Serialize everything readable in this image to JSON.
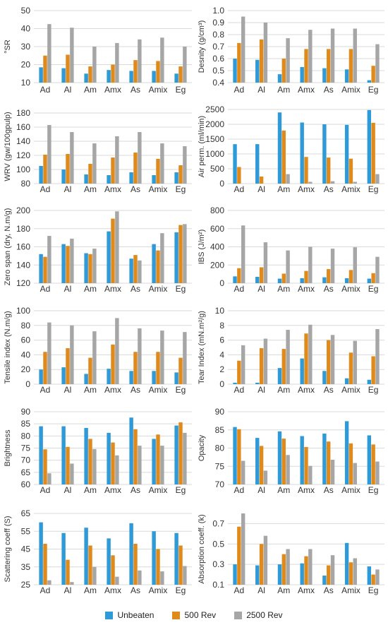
{
  "colors": {
    "unbeaten": "#2e9ad8",
    "rev500": "#e08a1a",
    "rev2500": "#a6a6a6",
    "grid": "#d9d9d9",
    "text": "#333333"
  },
  "legend": [
    "Unbeaten",
    "500 Rev",
    "2500 Rev"
  ],
  "chart_data": [
    {
      "type": "bar",
      "ylabel": "°SR",
      "categories": [
        "Ad",
        "Al",
        "Am",
        "Amx",
        "As",
        "Amix",
        "Eg"
      ],
      "yticks": [
        "10",
        "20",
        "30",
        "40",
        "50"
      ],
      "ylim": [
        10,
        50
      ],
      "series": [
        {
          "name": "Unbeaten",
          "values": [
            18.5,
            18,
            15,
            17,
            16.5,
            16.5,
            15
          ]
        },
        {
          "name": "500 Rev",
          "values": [
            25,
            25.5,
            19,
            20,
            22.5,
            22,
            19
          ]
        },
        {
          "name": "2500 Rev",
          "values": [
            42.5,
            40.5,
            30,
            32,
            34,
            35,
            30
          ]
        }
      ]
    },
    {
      "type": "bar",
      "ylabel": "Desnity (g/cm³)",
      "categories": [
        "Ad",
        "Al",
        "Am",
        "Amx",
        "As",
        "Amix",
        "Eg"
      ],
      "yticks": [
        "0.4",
        "0.5",
        "0.6",
        "0.7",
        "0.8",
        "0.9",
        "1.0"
      ],
      "ylim": [
        0.4,
        1.0
      ],
      "series": [
        {
          "name": "Unbeaten",
          "values": [
            0.6,
            0.59,
            0.47,
            0.53,
            0.52,
            0.51,
            0.42
          ]
        },
        {
          "name": "500 Rev",
          "values": [
            0.73,
            0.76,
            0.6,
            0.68,
            0.68,
            0.68,
            0.54
          ]
        },
        {
          "name": "2500 Rev",
          "values": [
            0.95,
            0.9,
            0.77,
            0.84,
            0.85,
            0.85,
            0.72
          ]
        }
      ]
    },
    {
      "type": "bar",
      "ylabel": "WRV (gw/100gpulp)",
      "categories": [
        "Ad",
        "Al",
        "Am",
        "Amx",
        "As",
        "Amix",
        "Eg"
      ],
      "yticks": [
        "80",
        "100",
        "120",
        "140",
        "160",
        "180"
      ],
      "ylim": [
        80,
        185
      ],
      "series": [
        {
          "name": "Unbeaten",
          "values": [
            105,
            100,
            93,
            92,
            96,
            92,
            96
          ]
        },
        {
          "name": "500 Rev",
          "values": [
            121,
            122,
            108,
            117,
            124,
            115,
            106
          ]
        },
        {
          "name": "2500 Rev",
          "values": [
            163,
            153,
            137,
            147,
            153,
            137,
            133
          ]
        }
      ]
    },
    {
      "type": "bar",
      "ylabel": "Air perm. (ml/min)",
      "categories": [
        "Ad",
        "Al",
        "Am",
        "Amx",
        "As",
        "Amix",
        "Eg"
      ],
      "yticks": [
        "0",
        "500",
        "1000",
        "1500",
        "2000",
        "2500"
      ],
      "ylim": [
        0,
        2500
      ],
      "series": [
        {
          "name": "Unbeaten",
          "values": [
            1330,
            1330,
            2400,
            2060,
            2000,
            1980,
            2480
          ]
        },
        {
          "name": "500 Rev",
          "values": [
            560,
            240,
            1790,
            900,
            880,
            840,
            2050
          ]
        },
        {
          "name": "2500 Rev",
          "values": [
            0,
            0,
            320,
            60,
            80,
            60,
            320
          ]
        }
      ]
    },
    {
      "type": "bar",
      "ylabel": "Zero span (dry, N.m/g)",
      "categories": [
        "Ad",
        "Al",
        "Am",
        "Amx",
        "As",
        "Amix",
        "Eg"
      ],
      "yticks": [
        "120",
        "140",
        "160",
        "180",
        "200"
      ],
      "ylim": [
        120,
        200
      ],
      "series": [
        {
          "name": "Unbeaten",
          "values": [
            152,
            163,
            153,
            177,
            147,
            163,
            176
          ]
        },
        {
          "name": "500 Rev",
          "values": [
            149,
            161,
            152,
            191,
            151,
            156,
            184
          ]
        },
        {
          "name": "2500 Rev",
          "values": [
            172,
            169,
            158,
            199,
            145,
            175,
            185
          ]
        }
      ]
    },
    {
      "type": "bar",
      "ylabel": "IBS (J/m²)",
      "categories": [
        "Ad",
        "Al",
        "Am",
        "Amx",
        "As",
        "Amix",
        "Eg"
      ],
      "yticks": [
        "0",
        "200",
        "400",
        "600",
        "800"
      ],
      "ylim": [
        0,
        800
      ],
      "series": [
        {
          "name": "Unbeaten",
          "values": [
            75,
            70,
            50,
            55,
            65,
            55,
            50
          ]
        },
        {
          "name": "500 Rev",
          "values": [
            165,
            175,
            105,
            135,
            155,
            145,
            110
          ]
        },
        {
          "name": "2500 Rev",
          "values": [
            635,
            450,
            360,
            400,
            380,
            395,
            290
          ]
        }
      ]
    },
    {
      "type": "bar",
      "ylabel": "Tensile index (N.m/g)",
      "categories": [
        "Ad",
        "Al",
        "Am",
        "Amx",
        "As",
        "Amix",
        "Eg"
      ],
      "yticks": [
        "0",
        "20",
        "40",
        "60",
        "80",
        "100"
      ],
      "ylim": [
        0,
        100
      ],
      "series": [
        {
          "name": "Unbeaten",
          "values": [
            20,
            23,
            14,
            21,
            18,
            18,
            16
          ]
        },
        {
          "name": "500 Rev",
          "values": [
            44,
            49,
            36,
            54,
            44,
            44,
            36
          ]
        },
        {
          "name": "2500 Rev",
          "values": [
            84,
            80,
            72,
            90,
            76,
            73,
            71
          ]
        }
      ]
    },
    {
      "type": "bar",
      "ylabel": "Tear Index (mN.m²/g)",
      "categories": [
        "Ad",
        "Al",
        "Am",
        "Amx",
        "As",
        "Amix",
        "Eg"
      ],
      "yticks": [
        "0",
        "2",
        "4",
        "6",
        "8",
        "10"
      ],
      "ylim": [
        0,
        10
      ],
      "series": [
        {
          "name": "Unbeaten",
          "values": [
            0.2,
            0.2,
            2.2,
            3.5,
            1.8,
            0.8,
            0.6
          ]
        },
        {
          "name": "500 Rev",
          "values": [
            3.2,
            4.9,
            4.8,
            6.9,
            6.0,
            4.3,
            3.8
          ]
        },
        {
          "name": "2500 Rev",
          "values": [
            5.3,
            6.2,
            7.4,
            8.1,
            6.7,
            5.9,
            7.5
          ]
        }
      ]
    },
    {
      "type": "bar",
      "ylabel": "Brightness",
      "categories": [
        "Ad",
        "Al",
        "Am",
        "Amx",
        "As",
        "Amix",
        "Eg"
      ],
      "yticks": [
        "60",
        "65",
        "70",
        "75",
        "80",
        "85",
        "90"
      ],
      "ylim": [
        60,
        90
      ],
      "series": [
        {
          "name": "Unbeaten",
          "values": [
            84,
            84,
            83.3,
            81.3,
            87.6,
            78.8,
            84.3
          ]
        },
        {
          "name": "500 Rev",
          "values": [
            74.5,
            75.5,
            78.8,
            77.3,
            82.8,
            80.6,
            85.6
          ]
        },
        {
          "name": "2500 Rev",
          "values": [
            64.6,
            68.6,
            74.6,
            72,
            76,
            76,
            81.3
          ]
        }
      ]
    },
    {
      "type": "bar",
      "ylabel": "Opacity",
      "categories": [
        "Ad",
        "Al",
        "Am",
        "Amx",
        "As",
        "Amix",
        "Eg"
      ],
      "yticks": [
        "70",
        "75",
        "80",
        "85",
        "90"
      ],
      "ylim": [
        70,
        90
      ],
      "series": [
        {
          "name": "Unbeaten",
          "values": [
            85.8,
            82.8,
            84.6,
            83.3,
            84,
            87.4,
            83.5
          ]
        },
        {
          "name": "500 Rev",
          "values": [
            85.2,
            80.6,
            82.6,
            80.3,
            81.8,
            81.3,
            81
          ]
        },
        {
          "name": "2500 Rev",
          "values": [
            76.5,
            73.8,
            78.1,
            75.1,
            76.8,
            75.9,
            76.3
          ]
        }
      ]
    },
    {
      "type": "bar",
      "ylabel": "Scattering coeff (S)",
      "categories": [
        "Ad",
        "Al",
        "Am",
        "Amx",
        "As",
        "Amix",
        "Eg"
      ],
      "yticks": [
        "25",
        "35",
        "45",
        "55",
        "65"
      ],
      "ylim": [
        25,
        65
      ],
      "series": [
        {
          "name": "Unbeaten",
          "values": [
            60,
            54,
            57,
            51,
            59.5,
            55,
            54
          ]
        },
        {
          "name": "500 Rev",
          "values": [
            48,
            39,
            47,
            41.5,
            48,
            45,
            47
          ]
        },
        {
          "name": "2500 Rev",
          "values": [
            27.5,
            26.5,
            35,
            29.5,
            33,
            32.5,
            35.5
          ]
        }
      ]
    },
    {
      "type": "bar",
      "ylabel": "Absorption coeff. (k)",
      "categories": [
        "Ad",
        "Al",
        "Am",
        "Amx",
        "As",
        "Amix",
        "Eg"
      ],
      "yticks": [
        "0.1",
        "0.3",
        "0.5",
        "0.7"
      ],
      "ylim": [
        0.1,
        0.8
      ],
      "series": [
        {
          "name": "Unbeaten",
          "values": [
            0.3,
            0.29,
            0.3,
            0.31,
            0.19,
            0.51,
            0.28
          ]
        },
        {
          "name": "500 Rev",
          "values": [
            0.67,
            0.5,
            0.4,
            0.38,
            0.29,
            0.32,
            0.2
          ]
        },
        {
          "name": "2500 Rev",
          "values": [
            0.8,
            0.58,
            0.45,
            0.45,
            0.39,
            0.36,
            0.25
          ]
        }
      ]
    }
  ]
}
